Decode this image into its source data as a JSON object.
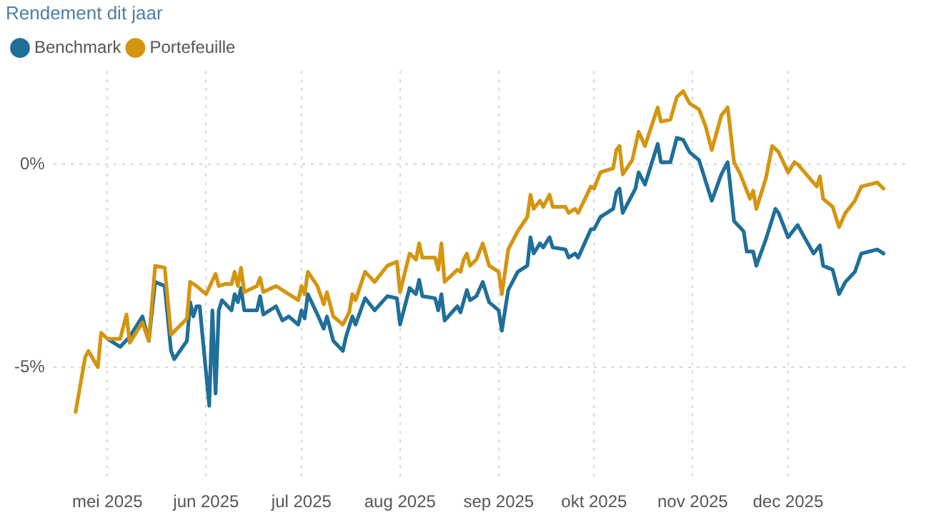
{
  "chart_data": {
    "type": "line",
    "title": "Rendement dit jaar",
    "legend": "top left",
    "grid": true,
    "line_style": "solid",
    "xlim": [
      "2025-04-14",
      "2026-01-08"
    ],
    "xticks": [
      {
        "value": "2025-05-01",
        "label": "mei 2025"
      },
      {
        "value": "2025-06-01",
        "label": "jun 2025"
      },
      {
        "value": "2025-07-01",
        "label": "jul 2025"
      },
      {
        "value": "2025-08-01",
        "label": "aug 2025"
      },
      {
        "value": "2025-09-01",
        "label": "sep 2025"
      },
      {
        "value": "2025-10-01",
        "label": "okt 2025"
      },
      {
        "value": "2025-11-01",
        "label": "nov 2025"
      },
      {
        "value": "2025-12-01",
        "label": "dec 2025"
      }
    ],
    "ylim": [
      -7.8,
      2.3
    ],
    "yticks": [
      {
        "value": -5,
        "label": "-5%"
      },
      {
        "value": 0,
        "label": "0%"
      }
    ],
    "series": [
      {
        "name": "Benchmark",
        "color": "#1f6f99",
        "x": [
          "2025-05-01",
          "2025-05-05",
          "2025-05-08",
          "2025-05-12",
          "2025-05-14",
          "2025-05-16",
          "2025-05-19",
          "2025-05-21",
          "2025-05-22",
          "2025-05-26",
          "2025-05-27",
          "2025-05-28",
          "2025-05-29",
          "2025-05-30",
          "2025-06-02",
          "2025-06-03",
          "2025-06-04",
          "2025-06-05",
          "2025-06-06",
          "2025-06-09",
          "2025-06-10",
          "2025-06-11",
          "2025-06-12",
          "2025-06-13",
          "2025-06-17",
          "2025-06-18",
          "2025-06-19",
          "2025-06-23",
          "2025-06-25",
          "2025-06-27",
          "2025-06-30",
          "2025-07-01",
          "2025-07-02",
          "2025-07-03",
          "2025-07-06",
          "2025-07-08",
          "2025-07-09",
          "2025-07-11",
          "2025-07-14",
          "2025-07-15",
          "2025-07-17",
          "2025-07-18",
          "2025-07-21",
          "2025-07-24",
          "2025-07-28",
          "2025-07-31",
          "2025-08-01",
          "2025-08-04",
          "2025-08-06",
          "2025-08-07",
          "2025-08-08",
          "2025-08-12",
          "2025-08-13",
          "2025-08-14",
          "2025-08-15",
          "2025-08-19",
          "2025-08-20",
          "2025-08-22",
          "2025-08-23",
          "2025-08-25",
          "2025-08-27",
          "2025-08-29",
          "2025-09-01",
          "2025-09-02",
          "2025-09-04",
          "2025-09-07",
          "2025-09-10",
          "2025-09-11",
          "2025-09-12",
          "2025-09-14",
          "2025-09-15",
          "2025-09-17",
          "2025-09-18",
          "2025-09-22",
          "2025-09-23",
          "2025-09-25",
          "2025-09-26",
          "2025-09-30",
          "2025-10-01",
          "2025-10-03",
          "2025-10-07",
          "2025-10-08",
          "2025-10-09",
          "2025-10-10",
          "2025-10-14",
          "2025-10-15",
          "2025-10-17",
          "2025-10-21",
          "2025-10-22",
          "2025-10-25",
          "2025-10-27",
          "2025-10-29",
          "2025-10-31",
          "2025-11-03",
          "2025-11-07",
          "2025-11-10",
          "2025-11-12",
          "2025-11-14",
          "2025-11-17",
          "2025-11-18",
          "2025-11-20",
          "2025-11-21",
          "2025-11-24",
          "2025-11-27",
          "2025-11-28",
          "2025-12-01",
          "2025-12-04",
          "2025-12-09",
          "2025-12-11",
          "2025-12-12",
          "2025-12-15",
          "2025-12-17",
          "2025-12-19",
          "2025-12-22",
          "2025-12-24",
          "2025-12-29",
          "2025-12-31"
        ],
        "values": [
          -4.3,
          -4.5,
          -4.25,
          -3.75,
          -4.35,
          -2.9,
          -3.0,
          -4.6,
          -4.8,
          -4.35,
          -3.4,
          -3.75,
          -3.5,
          -3.5,
          -5.95,
          -3.6,
          -5.65,
          -3.6,
          -3.35,
          -3.6,
          -3.2,
          -3.4,
          -3.05,
          -3.6,
          -3.6,
          -3.25,
          -3.7,
          -3.5,
          -3.85,
          -3.75,
          -3.95,
          -3.6,
          -3.8,
          -3.2,
          -3.7,
          -4.05,
          -3.75,
          -4.35,
          -4.6,
          -4.25,
          -3.75,
          -3.95,
          -3.3,
          -3.6,
          -3.25,
          -3.3,
          -3.95,
          -3.05,
          -3.2,
          -2.85,
          -3.25,
          -3.3,
          -3.6,
          -3.2,
          -3.85,
          -3.5,
          -3.65,
          -3.1,
          -3.35,
          -3.25,
          -2.9,
          -3.4,
          -3.6,
          -4.1,
          -3.1,
          -2.65,
          -2.5,
          -1.8,
          -2.2,
          -1.95,
          -2.05,
          -1.8,
          -2.05,
          -2.1,
          -2.3,
          -2.2,
          -2.3,
          -1.6,
          -1.6,
          -1.3,
          -1.1,
          -0.7,
          -0.6,
          -1.2,
          -0.6,
          -0.2,
          -0.5,
          0.5,
          0.05,
          0.05,
          0.65,
          0.6,
          0.3,
          0.1,
          -0.9,
          -0.25,
          0.05,
          -1.4,
          -1.65,
          -2.15,
          -2.15,
          -2.5,
          -1.85,
          -1.1,
          -1.2,
          -1.8,
          -1.5,
          -2.2,
          -2.0,
          -2.5,
          -2.6,
          -3.2,
          -2.9,
          -2.65,
          -2.2,
          -2.1,
          -2.2
        ]
      },
      {
        "name": "Portefeuille",
        "color": "#d4950f",
        "x": [
          "2025-04-21",
          "2025-04-24",
          "2025-04-25",
          "2025-04-28",
          "2025-04-29",
          "2025-05-01",
          "2025-05-05",
          "2025-05-07",
          "2025-05-08",
          "2025-05-12",
          "2025-05-14",
          "2025-05-16",
          "2025-05-19",
          "2025-05-21",
          "2025-05-26",
          "2025-05-27",
          "2025-05-29",
          "2025-06-01",
          "2025-06-04",
          "2025-06-05",
          "2025-06-07",
          "2025-06-09",
          "2025-06-10",
          "2025-06-11",
          "2025-06-12",
          "2025-06-13",
          "2025-06-17",
          "2025-06-18",
          "2025-06-19",
          "2025-06-23",
          "2025-06-27",
          "2025-06-30",
          "2025-07-01",
          "2025-07-02",
          "2025-07-03",
          "2025-07-06",
          "2025-07-08",
          "2025-07-09",
          "2025-07-11",
          "2025-07-14",
          "2025-07-16",
          "2025-07-17",
          "2025-07-18",
          "2025-07-21",
          "2025-07-24",
          "2025-07-28",
          "2025-07-31",
          "2025-08-01",
          "2025-08-04",
          "2025-08-06",
          "2025-08-07",
          "2025-08-08",
          "2025-08-12",
          "2025-08-13",
          "2025-08-14",
          "2025-08-15",
          "2025-08-19",
          "2025-08-20",
          "2025-08-21",
          "2025-08-22",
          "2025-08-23",
          "2025-08-25",
          "2025-08-27",
          "2025-08-29",
          "2025-09-01",
          "2025-09-02",
          "2025-09-04",
          "2025-09-07",
          "2025-09-10",
          "2025-09-11",
          "2025-09-12",
          "2025-09-14",
          "2025-09-15",
          "2025-09-17",
          "2025-09-18",
          "2025-09-22",
          "2025-09-23",
          "2025-09-25",
          "2025-09-26",
          "2025-09-30",
          "2025-10-01",
          "2025-10-03",
          "2025-10-07",
          "2025-10-08",
          "2025-10-09",
          "2025-10-10",
          "2025-10-13",
          "2025-10-15",
          "2025-10-17",
          "2025-10-21",
          "2025-10-22",
          "2025-10-25",
          "2025-10-27",
          "2025-10-29",
          "2025-10-31",
          "2025-11-03",
          "2025-11-05",
          "2025-11-07",
          "2025-11-10",
          "2025-11-12",
          "2025-11-14",
          "2025-11-16",
          "2025-11-19",
          "2025-11-20",
          "2025-11-21",
          "2025-11-24",
          "2025-11-26",
          "2025-11-28",
          "2025-12-01",
          "2025-12-03",
          "2025-12-04",
          "2025-12-10",
          "2025-12-11",
          "2025-12-12",
          "2025-12-15",
          "2025-12-17",
          "2025-12-19",
          "2025-12-22",
          "2025-12-24",
          "2025-12-29",
          "2025-12-31"
        ],
        "values": [
          -6.1,
          -4.75,
          -4.6,
          -5.0,
          -4.15,
          -4.3,
          -4.3,
          -3.7,
          -4.4,
          -3.9,
          -4.35,
          -2.5,
          -2.55,
          -4.2,
          -3.8,
          -2.9,
          -3.0,
          -3.2,
          -2.7,
          -3.0,
          -2.95,
          -2.95,
          -2.65,
          -3.0,
          -2.55,
          -3.15,
          -3.0,
          -2.8,
          -3.15,
          -3.0,
          -3.2,
          -3.35,
          -3.0,
          -3.2,
          -2.65,
          -3.0,
          -3.45,
          -3.15,
          -3.75,
          -3.95,
          -3.65,
          -3.2,
          -3.35,
          -2.65,
          -2.9,
          -2.5,
          -2.4,
          -3.15,
          -2.2,
          -2.35,
          -1.95,
          -2.3,
          -2.3,
          -2.6,
          -1.95,
          -2.9,
          -2.6,
          -2.65,
          -2.35,
          -2.2,
          -2.5,
          -2.35,
          -1.95,
          -2.5,
          -2.65,
          -3.2,
          -2.1,
          -1.65,
          -1.3,
          -0.75,
          -1.1,
          -0.9,
          -1.05,
          -0.75,
          -1.05,
          -1.05,
          -1.2,
          -1.1,
          -1.2,
          -0.55,
          -0.6,
          -0.2,
          -0.1,
          0.35,
          0.45,
          -0.25,
          0.1,
          0.8,
          0.45,
          1.4,
          1.05,
          1.1,
          1.65,
          1.8,
          1.5,
          1.35,
          0.95,
          0.35,
          1.2,
          1.4,
          0.05,
          -0.25,
          -0.85,
          -0.65,
          -1.1,
          -0.35,
          0.45,
          0.3,
          -0.2,
          0.05,
          0,
          -0.55,
          -0.3,
          -0.85,
          -1.05,
          -1.55,
          -1.2,
          -0.9,
          -0.55,
          -0.45,
          -0.6
        ]
      }
    ]
  }
}
